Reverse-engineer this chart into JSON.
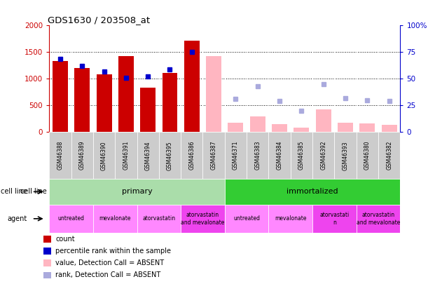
{
  "title": "GDS1630 / 203508_at",
  "samples": [
    "GSM46388",
    "GSM46389",
    "GSM46390",
    "GSM46391",
    "GSM46394",
    "GSM46395",
    "GSM46386",
    "GSM46387",
    "GSM46371",
    "GSM46383",
    "GSM46384",
    "GSM46385",
    "GSM46392",
    "GSM46393",
    "GSM46380",
    "GSM46382"
  ],
  "count_values": [
    1340,
    1200,
    1090,
    1420,
    840,
    1110,
    1720,
    null,
    null,
    null,
    null,
    null,
    null,
    null,
    null,
    null
  ],
  "count_absent": [
    null,
    null,
    null,
    null,
    null,
    null,
    null,
    1420,
    170,
    290,
    150,
    80,
    430,
    180,
    160,
    130
  ],
  "rank_values": [
    69,
    62,
    57,
    51,
    52,
    59,
    75,
    null,
    null,
    null,
    null,
    null,
    null,
    null,
    null,
    null
  ],
  "rank_absent": [
    null,
    null,
    null,
    null,
    null,
    null,
    null,
    null,
    31,
    43,
    29,
    20,
    45,
    32,
    30,
    29
  ],
  "cell_line_groups": [
    {
      "label": "primary",
      "start": 0,
      "end": 7,
      "color": "#AADDAA"
    },
    {
      "label": "immortalized",
      "start": 8,
      "end": 15,
      "color": "#33CC33"
    }
  ],
  "agent_groups": [
    {
      "label": "untreated",
      "start": 0,
      "end": 1,
      "color": "#FF88FF"
    },
    {
      "label": "mevalonate",
      "start": 2,
      "end": 3,
      "color": "#FF88FF"
    },
    {
      "label": "atorvastatin",
      "start": 4,
      "end": 5,
      "color": "#FF88FF"
    },
    {
      "label": "atorvastatin\nand mevalonate",
      "start": 6,
      "end": 7,
      "color": "#EE44EE"
    },
    {
      "label": "untreated",
      "start": 8,
      "end": 9,
      "color": "#FF88FF"
    },
    {
      "label": "mevalonate",
      "start": 10,
      "end": 11,
      "color": "#FF88FF"
    },
    {
      "label": "atorvastati\nn",
      "start": 12,
      "end": 13,
      "color": "#EE44EE"
    },
    {
      "label": "atorvastatin\nand mevalonate",
      "start": 14,
      "end": 15,
      "color": "#EE44EE"
    }
  ],
  "ylim_left": [
    0,
    2000
  ],
  "ylim_right": [
    0,
    100
  ],
  "yticks_left": [
    0,
    500,
    1000,
    1500,
    2000
  ],
  "yticks_right": [
    0,
    25,
    50,
    75,
    100
  ],
  "yticklabels_left": [
    "0",
    "500",
    "1000",
    "1500",
    "2000"
  ],
  "yticklabels_right": [
    "0",
    "25",
    "50",
    "75",
    "100%"
  ],
  "bar_color_present": "#CC0000",
  "bar_color_absent": "#FFB6C1",
  "rank_color_present": "#0000CC",
  "rank_color_absent": "#AAAADD",
  "bg_color": "#FFFFFF",
  "plot_bg": "#FFFFFF",
  "tick_box_color": "#CCCCCC",
  "grid_color": "#000000"
}
